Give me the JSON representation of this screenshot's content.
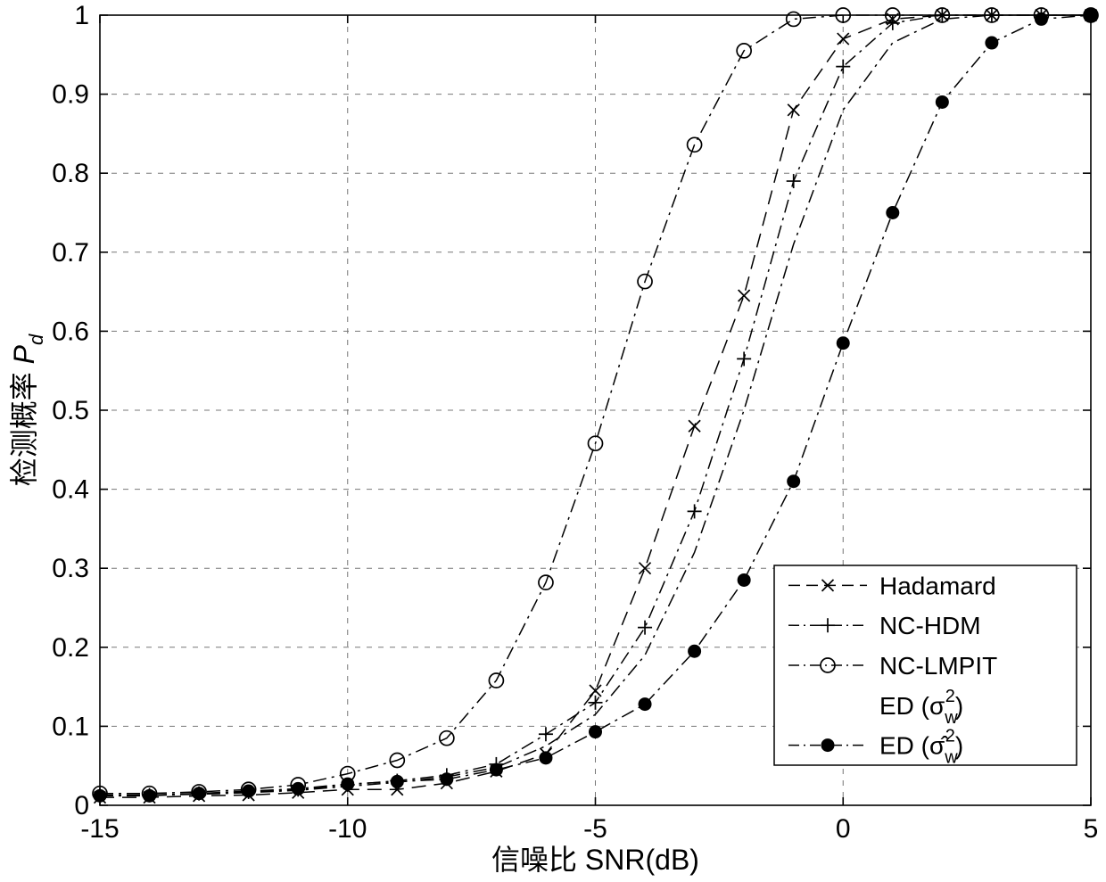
{
  "figure": {
    "background": "#ffffff",
    "frame_color": "#000000",
    "grid_color": "#777777"
  },
  "chart_data": {
    "type": "line",
    "title": "",
    "xlabel": "信噪比 SNR(dB)",
    "ylabel": "检测概率 Pd",
    "ylabel_rich": [
      {
        "t": "检测概率 "
      },
      {
        "t": "P",
        "italic": true
      },
      {
        "t": "d",
        "pos": "sub",
        "italic": true
      }
    ],
    "xlim": [
      -15,
      5
    ],
    "ylim": [
      0,
      1
    ],
    "xticks": [
      -15,
      -10,
      -5,
      0,
      5
    ],
    "xtick_labels": [
      "-15",
      "-10",
      "-5",
      "0",
      "5"
    ],
    "yticks": [
      0,
      0.1,
      0.2,
      0.3,
      0.4,
      0.5,
      0.6,
      0.7,
      0.8,
      0.9,
      1
    ],
    "ytick_labels": [
      "0",
      "0.1",
      "0.2",
      "0.3",
      "0.4",
      "0.5",
      "0.6",
      "0.7",
      "0.8",
      "0.9",
      "1"
    ],
    "grid": true,
    "legend_position": "lower-right",
    "x": [
      -15,
      -14,
      -13,
      -12,
      -11,
      -10,
      -9,
      -8,
      -7,
      -6,
      -5,
      -4,
      -3,
      -2,
      -1,
      0,
      1,
      2,
      3,
      4,
      5
    ],
    "series": [
      {
        "name": "Hadamard",
        "label": "Hadamard",
        "label_rich": [
          {
            "t": "Hadamard"
          }
        ],
        "marker": "x",
        "dash": "dashed",
        "legend_sample": true,
        "values": [
          0.01,
          0.01,
          0.012,
          0.013,
          0.016,
          0.02,
          0.02,
          0.028,
          0.043,
          0.065,
          0.145,
          0.3,
          0.48,
          0.645,
          0.88,
          0.97,
          0.995,
          1.0,
          1.0,
          1.0,
          1.0
        ]
      },
      {
        "name": "NC-HDM",
        "label": "NC-HDM",
        "label_rich": [
          {
            "t": "NC-HDM"
          }
        ],
        "marker": "+",
        "dash": "dashdot",
        "legend_sample": true,
        "values": [
          0.013,
          0.013,
          0.015,
          0.017,
          0.02,
          0.026,
          0.031,
          0.038,
          0.052,
          0.09,
          0.13,
          0.225,
          0.372,
          0.565,
          0.79,
          0.935,
          0.99,
          1.0,
          1.0,
          1.0,
          1.0
        ]
      },
      {
        "name": "NC-LMPIT",
        "label": "NC-LMPIT",
        "label_rich": [
          {
            "t": "NC-LMPIT"
          }
        ],
        "marker": "o",
        "dash": "dashdot",
        "legend_sample": true,
        "values": [
          0.015,
          0.015,
          0.017,
          0.02,
          0.026,
          0.04,
          0.057,
          0.085,
          0.158,
          0.282,
          0.458,
          0.663,
          0.836,
          0.955,
          0.995,
          1.0,
          1.0,
          1.0,
          1.0,
          1.0,
          1.0
        ]
      },
      {
        "name": "ED (sigma_w^2)",
        "label": "ED (σw2)",
        "label_rich": [
          {
            "t": "ED (σ"
          },
          {
            "t": "w",
            "pos": "sub"
          },
          {
            "t": "2",
            "pos": "sup"
          },
          {
            "t": ")"
          }
        ],
        "marker": "none",
        "dash": "dashdot",
        "legend_sample": false,
        "values": [
          0.012,
          0.013,
          0.014,
          0.016,
          0.019,
          0.024,
          0.029,
          0.036,
          0.048,
          0.075,
          0.115,
          0.19,
          0.32,
          0.5,
          0.71,
          0.88,
          0.965,
          0.995,
          1.0,
          1.0,
          1.0
        ]
      },
      {
        "name": "ED (sigma-hat_w^2)",
        "label": "ED (σ̂w2)",
        "label_rich": [
          {
            "t": "ED (σ̂"
          },
          {
            "t": "w",
            "pos": "sub"
          },
          {
            "t": "2",
            "pos": "sup"
          },
          {
            "t": ")"
          }
        ],
        "marker": "dot",
        "dash": "dashdot",
        "legend_sample": true,
        "values": [
          0.012,
          0.012,
          0.015,
          0.018,
          0.021,
          0.027,
          0.03,
          0.033,
          0.045,
          0.06,
          0.093,
          0.128,
          0.195,
          0.285,
          0.41,
          0.585,
          0.75,
          0.89,
          0.965,
          0.995,
          1.0
        ]
      }
    ]
  }
}
